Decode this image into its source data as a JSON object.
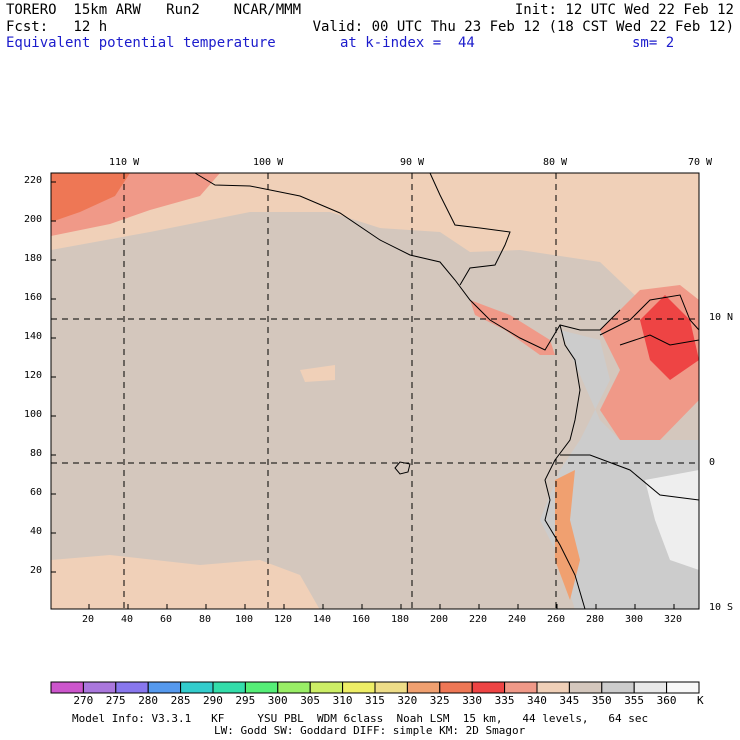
{
  "header": {
    "line1_left": "TORERO  15km ARW   Run2    NCAR/MMM",
    "line1_right": "Init: 12 UTC Wed 22 Feb 12",
    "line2_left": "Fcst:   12 h",
    "line2_right": "Valid: 00 UTC Thu 23 Feb 12 (18 CST Wed 22 Feb 12)",
    "field_name": "Equivalent potential temperature",
    "level": "at k-index =  44",
    "smoothing": "sm= 2"
  },
  "map": {
    "lon_labels": [
      "110 W",
      "100 W",
      "90 W",
      "80 W",
      "70 W"
    ],
    "lat_labels": [
      "10 N",
      "0",
      "10 S"
    ],
    "y_ticks": [
      "220",
      "200",
      "180",
      "160",
      "140",
      "120",
      "100",
      "80",
      "60",
      "40",
      "20"
    ],
    "x_ticks": [
      "20",
      "40",
      "60",
      "80",
      "100",
      "120",
      "140",
      "160",
      "180",
      "200",
      "220",
      "240",
      "260",
      "280",
      "300",
      "320"
    ]
  },
  "colorbar": {
    "labels": [
      "270",
      "275",
      "280",
      "285",
      "290",
      "295",
      "300",
      "305",
      "310",
      "315",
      "320",
      "325",
      "330",
      "335",
      "340",
      "345",
      "350",
      "355",
      "360"
    ],
    "unit": "K",
    "colors": [
      "#cc55cc",
      "#aa77dd",
      "#8877ee",
      "#5599ee",
      "#33cccc",
      "#33ddaa",
      "#55ee77",
      "#99ee66",
      "#ccee66",
      "#eeee66",
      "#eedd88",
      "#f0a070",
      "#ee7755",
      "#ee4444",
      "#f09988",
      "#f0d0b8",
      "#d4c7bd",
      "#cccccc",
      "#e8e8e8",
      "#f8f8f8"
    ]
  },
  "footer": {
    "line1": "Model Info: V3.3.1   KF     YSU PBL  WDM 6class  Noah LSM  15 km,   44 levels,   64 sec",
    "line2": "LW: Godd SW: Goddard DIFF: simple KM: 2D Smagor"
  }
}
